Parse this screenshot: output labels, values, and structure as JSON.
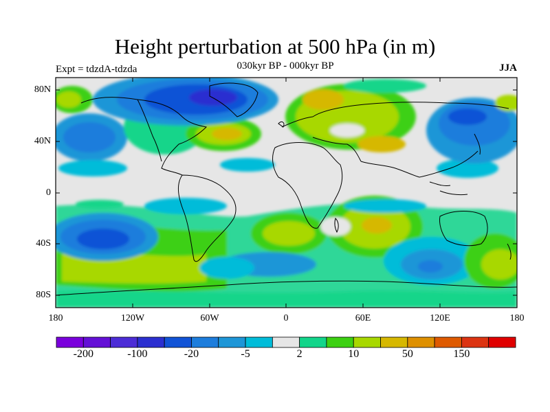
{
  "title": "Height perturbation at 500 hPa (in m)",
  "subtitle_left": "Expt = tdzdA-tdzda",
  "subtitle_center": "030kyr BP - 000kyr BP",
  "subtitle_right": "JJA",
  "map": {
    "projection": "cylindrical-equidistant",
    "lon_range": [
      -180,
      180
    ],
    "lat_range": [
      -90,
      90
    ],
    "x_ticks": [
      "180",
      "120W",
      "60W",
      "0",
      "60E",
      "120E",
      "180"
    ],
    "y_ticks": [
      "80N",
      "40N",
      "0",
      "40S",
      "80S"
    ],
    "background": "#e6e6e6"
  },
  "colorbar": {
    "colors": [
      "#7a00dc",
      "#6410d6",
      "#4c2cd6",
      "#2b2fd0",
      "#1153d6",
      "#1d7ddc",
      "#1e96d7",
      "#00bcd9",
      "#e6e6e6",
      "#12d58a",
      "#3cd012",
      "#a8d800",
      "#d6b800",
      "#de9000",
      "#de5a00",
      "#dc3412",
      "#e00000"
    ],
    "labels": [
      "-200",
      "-100",
      "-20",
      "-5",
      "2",
      "10",
      "50",
      "150"
    ]
  }
}
